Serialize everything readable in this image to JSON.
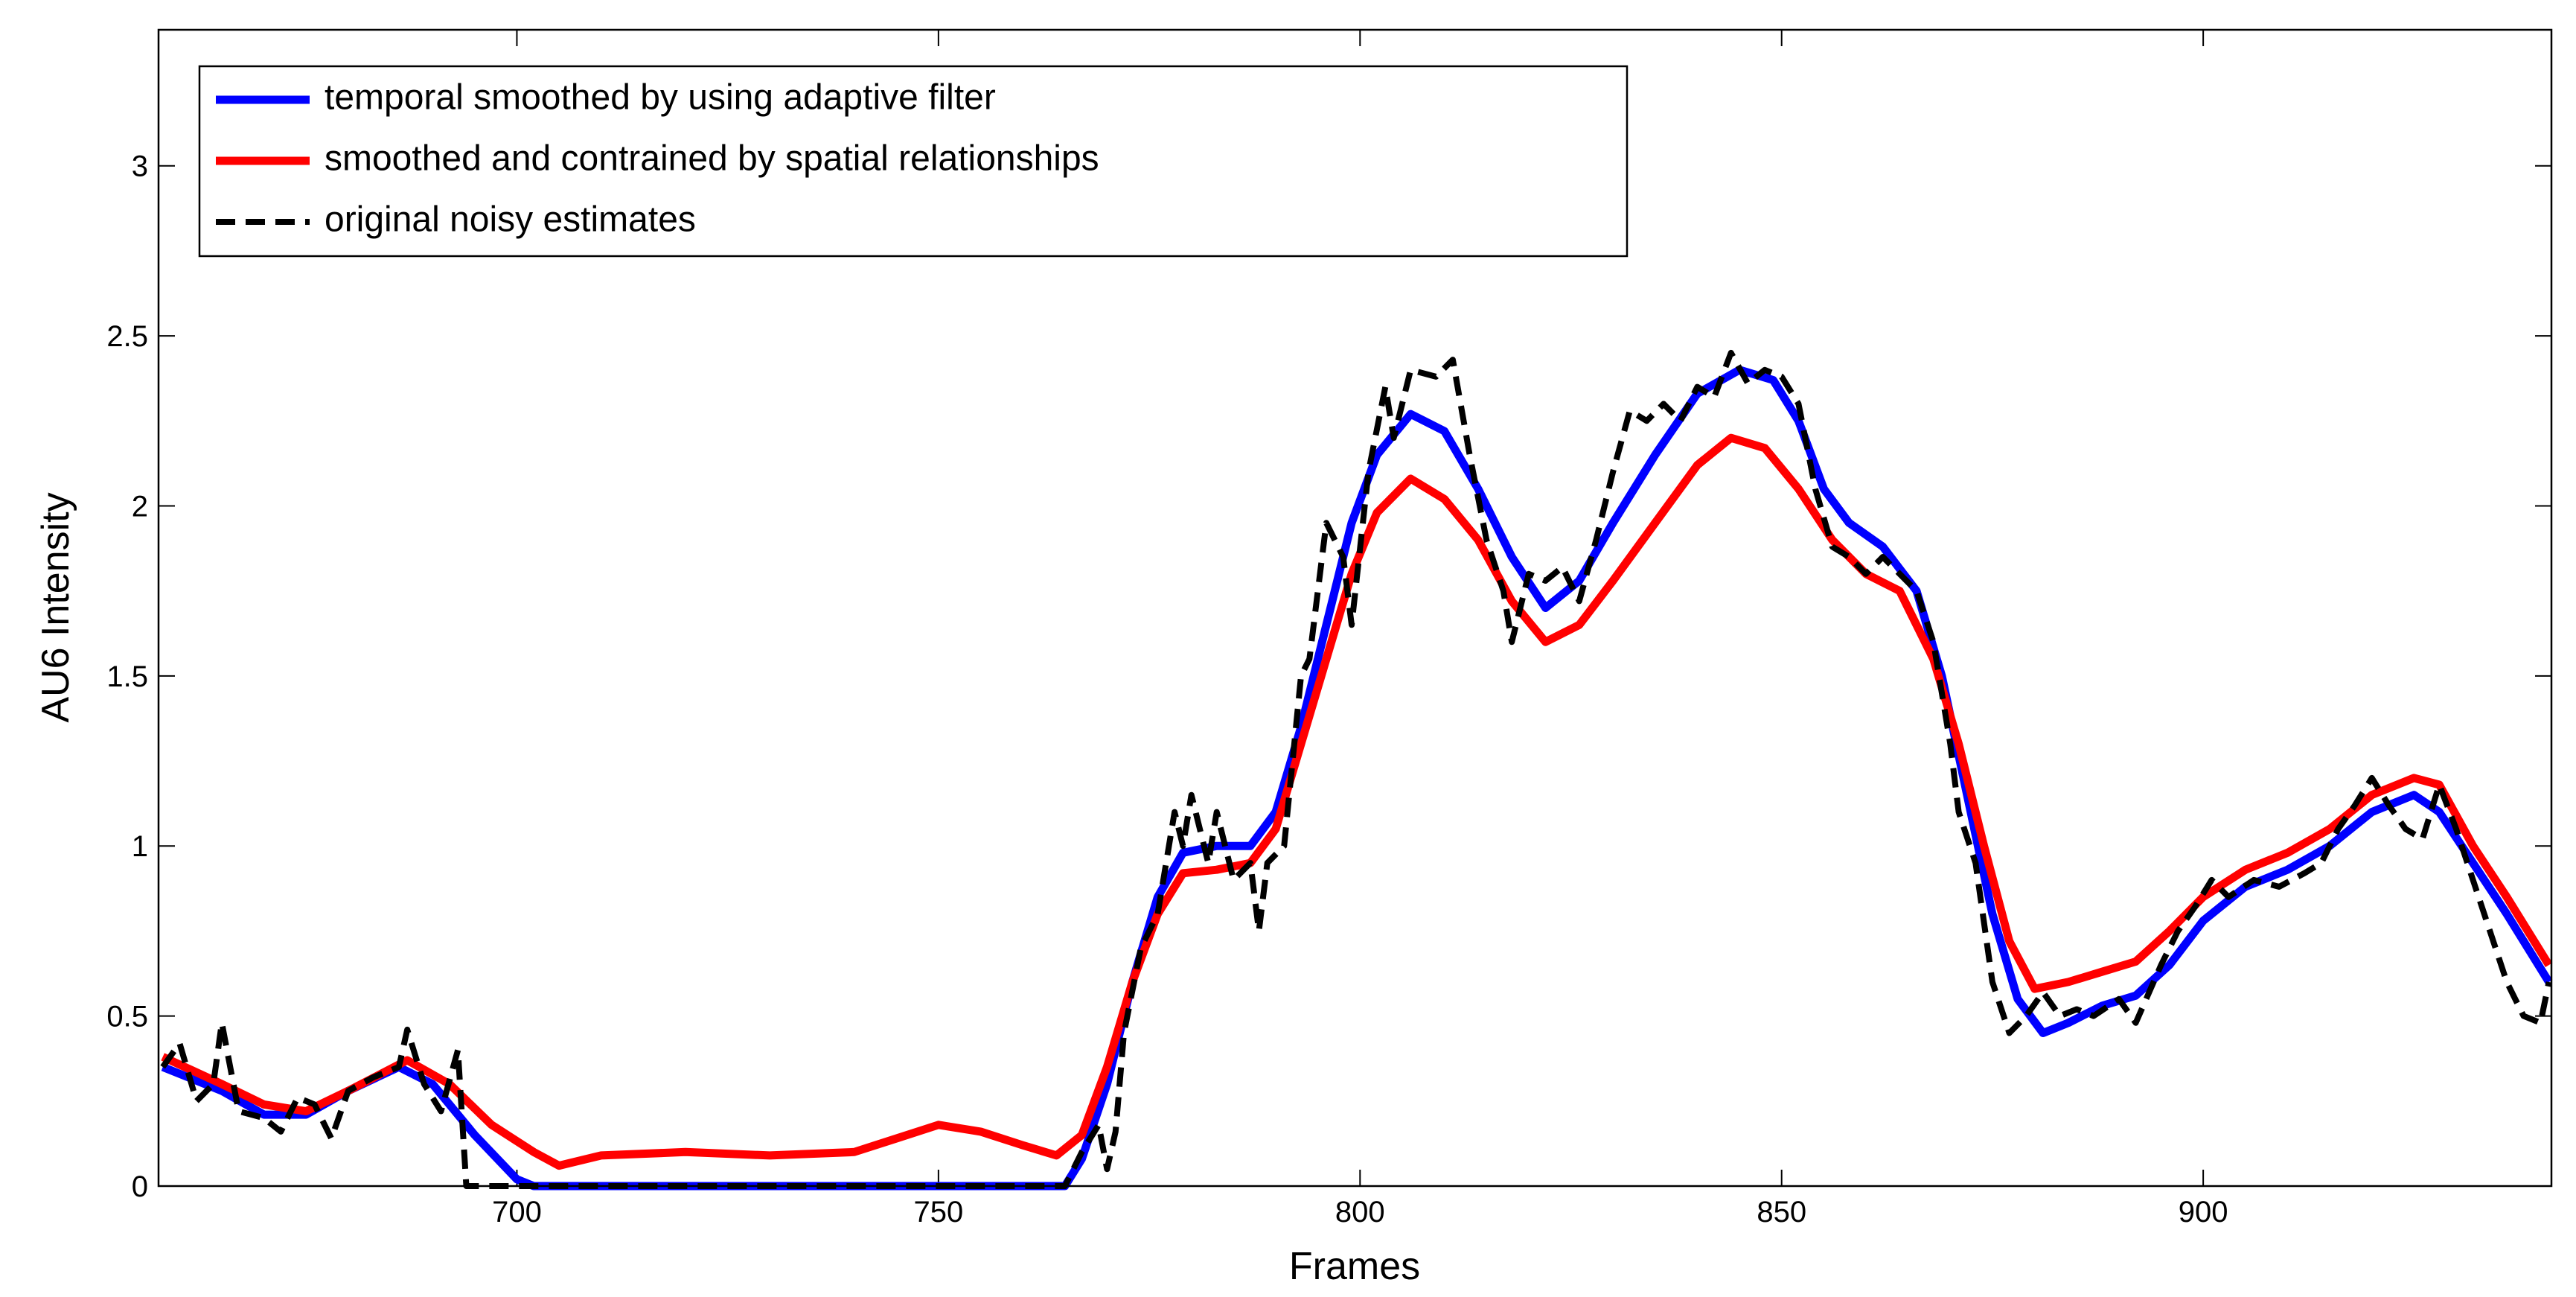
{
  "chart_data": {
    "type": "line",
    "x_label": "Frames",
    "y_label": "AU6 Intensity",
    "xlim": [
      657.5,
      941.3
    ],
    "ylim": [
      0,
      3.4
    ],
    "xticks": [
      700,
      750,
      800,
      850,
      900
    ],
    "yticks": [
      0,
      0.5,
      1,
      1.5,
      2,
      2.5,
      3
    ],
    "grid": false,
    "legend": "upper left",
    "series": [
      {
        "name": "temporal smoothed by using adaptive filter",
        "color": "#0000ff",
        "dash": false,
        "x": [
          658,
          665,
          670,
          675,
          680,
          686,
          690,
          695,
          700,
          702,
          765,
          767,
          770,
          773,
          776,
          779,
          783,
          787,
          790,
          793,
          796,
          799,
          802,
          806,
          810,
          814,
          818,
          822,
          826,
          830,
          835,
          840,
          845,
          849,
          852,
          855,
          858,
          862,
          866,
          869,
          872,
          875,
          878,
          881,
          884,
          888,
          892,
          896,
          900,
          905,
          910,
          915,
          920,
          925,
          928,
          932,
          936,
          941
        ],
        "values": [
          0.35,
          0.28,
          0.21,
          0.21,
          0.28,
          0.35,
          0.3,
          0.15,
          0.02,
          0,
          0,
          0.08,
          0.3,
          0.6,
          0.85,
          0.98,
          1.0,
          1.0,
          1.1,
          1.35,
          1.65,
          1.95,
          2.15,
          2.27,
          2.22,
          2.05,
          1.85,
          1.7,
          1.78,
          1.95,
          2.15,
          2.33,
          2.4,
          2.37,
          2.25,
          2.05,
          1.95,
          1.88,
          1.75,
          1.5,
          1.15,
          0.8,
          0.55,
          0.45,
          0.48,
          0.53,
          0.56,
          0.65,
          0.78,
          0.88,
          0.93,
          1.0,
          1.1,
          1.15,
          1.1,
          0.95,
          0.8,
          0.6
        ]
      },
      {
        "name": "smoothed and contrained by spatial relationships",
        "color": "#ff0000",
        "dash": false,
        "x": [
          658,
          665,
          670,
          675,
          680,
          687,
          692,
          697,
          702,
          705,
          710,
          720,
          730,
          740,
          745,
          750,
          755,
          760,
          764,
          767,
          770,
          773,
          776,
          779,
          783,
          787,
          790,
          793,
          796,
          799,
          802,
          806,
          810,
          814,
          818,
          822,
          826,
          830,
          835,
          840,
          844,
          848,
          852,
          856,
          860,
          864,
          868,
          871,
          874,
          877,
          880,
          884,
          888,
          892,
          896,
          900,
          905,
          910,
          915,
          920,
          925,
          928,
          932,
          936,
          941
        ],
        "values": [
          0.38,
          0.3,
          0.24,
          0.22,
          0.28,
          0.37,
          0.3,
          0.18,
          0.1,
          0.06,
          0.09,
          0.1,
          0.09,
          0.1,
          0.14,
          0.18,
          0.16,
          0.12,
          0.09,
          0.15,
          0.35,
          0.6,
          0.8,
          0.92,
          0.93,
          0.95,
          1.05,
          1.3,
          1.55,
          1.8,
          1.98,
          2.08,
          2.02,
          1.9,
          1.72,
          1.6,
          1.65,
          1.78,
          1.95,
          2.12,
          2.2,
          2.17,
          2.05,
          1.9,
          1.8,
          1.75,
          1.55,
          1.3,
          1.0,
          0.72,
          0.58,
          0.6,
          0.63,
          0.66,
          0.75,
          0.85,
          0.93,
          0.98,
          1.05,
          1.15,
          1.2,
          1.18,
          1.0,
          0.85,
          0.65
        ]
      },
      {
        "name": "original noisy estimates",
        "color": "#000000",
        "dash": true,
        "x": [
          658,
          660,
          662,
          664,
          665,
          667,
          670,
          672,
          674,
          676,
          678,
          680,
          683,
          686,
          687,
          689,
          691,
          693,
          694,
          765,
          767,
          769,
          770,
          771,
          772,
          774,
          776,
          778,
          779,
          780,
          782,
          783,
          785,
          787,
          788,
          789,
          791,
          793,
          794,
          796,
          798,
          799,
          801,
          803,
          804,
          806,
          809,
          811,
          813,
          815,
          817,
          818,
          820,
          822,
          824,
          826,
          828,
          830,
          832,
          834,
          836,
          838,
          840,
          842,
          844,
          846,
          848,
          850,
          852,
          854,
          856,
          858,
          860,
          862,
          864,
          866,
          868,
          870,
          871,
          873,
          875,
          877,
          879,
          881,
          883,
          885,
          887,
          890,
          892,
          895,
          897,
          899,
          901,
          903,
          906,
          909,
          912,
          914,
          916,
          918,
          920,
          922,
          924,
          926,
          928,
          930,
          932,
          934,
          936,
          938,
          940,
          941
        ],
        "values": [
          0.35,
          0.42,
          0.25,
          0.3,
          0.48,
          0.22,
          0.2,
          0.16,
          0.26,
          0.24,
          0.14,
          0.28,
          0.32,
          0.35,
          0.46,
          0.3,
          0.22,
          0.4,
          0,
          0,
          0.1,
          0.18,
          0.05,
          0.16,
          0.45,
          0.7,
          0.8,
          1.1,
          1.0,
          1.15,
          0.95,
          1.1,
          0.9,
          0.95,
          0.75,
          0.95,
          1.0,
          1.5,
          1.55,
          1.95,
          1.85,
          1.65,
          2.1,
          2.35,
          2.2,
          2.4,
          2.38,
          2.43,
          2.15,
          1.9,
          1.75,
          1.6,
          1.8,
          1.78,
          1.82,
          1.72,
          1.9,
          2.1,
          2.28,
          2.25,
          2.3,
          2.25,
          2.35,
          2.32,
          2.45,
          2.36,
          2.4,
          2.38,
          2.3,
          2.05,
          1.88,
          1.85,
          1.8,
          1.85,
          1.8,
          1.75,
          1.6,
          1.3,
          1.1,
          0.95,
          0.6,
          0.45,
          0.5,
          0.57,
          0.5,
          0.52,
          0.5,
          0.55,
          0.48,
          0.65,
          0.75,
          0.82,
          0.9,
          0.85,
          0.9,
          0.88,
          0.92,
          0.95,
          1.05,
          1.12,
          1.2,
          1.12,
          1.05,
          1.02,
          1.18,
          1.05,
          0.9,
          0.75,
          0.6,
          0.5,
          0.48,
          0.6
        ]
      }
    ]
  }
}
